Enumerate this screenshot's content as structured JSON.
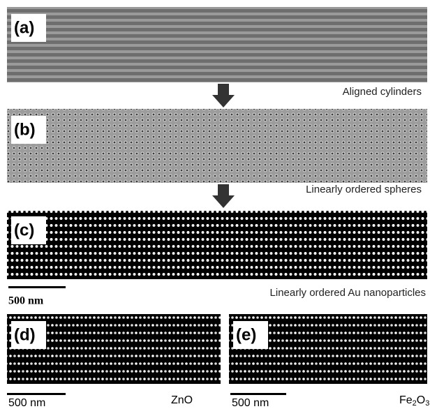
{
  "panels": [
    {
      "label": "(a)",
      "caption": "Aligned cylinders"
    },
    {
      "label": "(b)",
      "caption": "Linearly ordered spheres"
    },
    {
      "label": "(c)",
      "caption": "Linearly ordered Au nanoparticles",
      "scale_bar": "500 nm"
    },
    {
      "label": "(d)",
      "scale_bar": "500 nm",
      "material": [
        "ZnO"
      ]
    },
    {
      "label": "(e)",
      "scale_bar": "500 nm",
      "material": [
        "Fe",
        "2",
        "O",
        "3"
      ]
    }
  ]
}
